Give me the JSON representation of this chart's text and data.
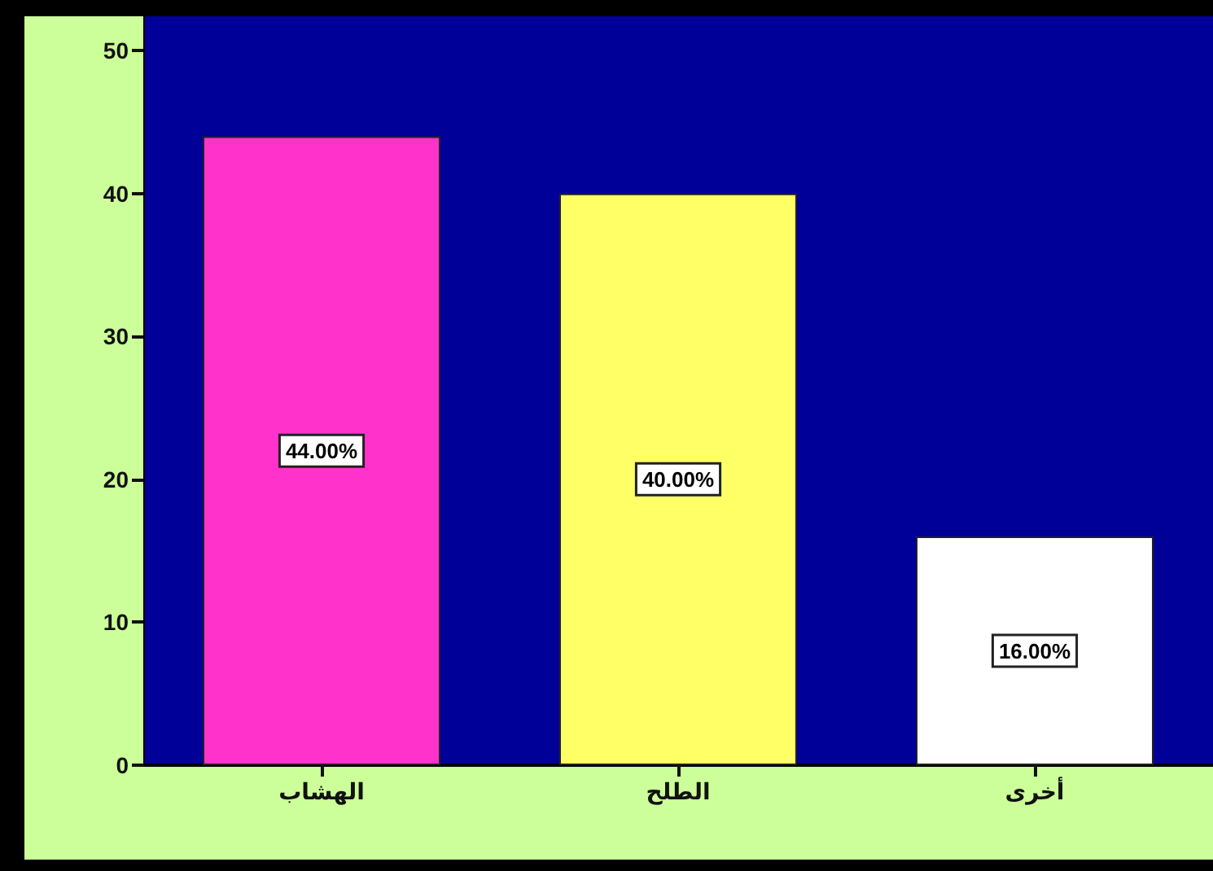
{
  "chart_data": {
    "type": "bar",
    "categories": [
      "الهشاب",
      "الطلح",
      "أخرى"
    ],
    "values": [
      44,
      40,
      16
    ],
    "colors": [
      "#ff33cc",
      "#ffff66",
      "#ffffff"
    ],
    "value_labels": [
      "44.00%",
      "40.00%",
      "16.00%"
    ],
    "ylim": [
      0,
      52.4
    ],
    "yticks": [
      0,
      10,
      20,
      30,
      40,
      50
    ],
    "grid": false
  }
}
